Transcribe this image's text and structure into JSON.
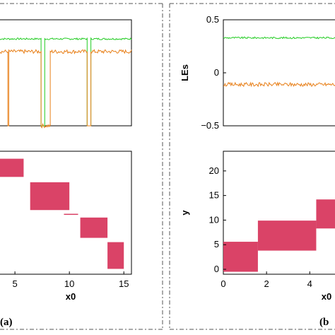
{
  "colors": {
    "green": "#22cc22",
    "orange": "#e8801a",
    "crimson": "#d8395f",
    "dash": "#555555"
  },
  "chart_data": [
    {
      "id": "a-top",
      "type": "line",
      "xlim": [
        8.5,
        15.7
      ],
      "ylim": [
        -0.5,
        0.5
      ],
      "yticks": [],
      "series": [
        {
          "color": "green",
          "values": [
            [
              8.5,
              0.32
            ],
            [
              10.8,
              0.32
            ],
            [
              10.8,
              -0.5
            ],
            [
              11.0,
              -0.5
            ],
            [
              11.0,
              0.32
            ],
            [
              13.3,
              0.32
            ],
            [
              13.3,
              -0.5
            ],
            [
              13.5,
              -0.5
            ],
            [
              13.5,
              0.32
            ],
            [
              15.7,
              0.32
            ]
          ]
        },
        {
          "color": "orange",
          "values": [
            [
              8.5,
              0.2
            ],
            [
              9.0,
              0.2
            ],
            [
              9.0,
              -0.5
            ],
            [
              9.05,
              -0.5
            ],
            [
              9.05,
              0.2
            ],
            [
              10.8,
              0.2
            ],
            [
              10.8,
              -0.5
            ],
            [
              11.3,
              -0.5
            ],
            [
              11.3,
              0.2
            ],
            [
              13.3,
              0.2
            ],
            [
              13.3,
              -0.5
            ],
            [
              13.5,
              -0.5
            ],
            [
              13.5,
              0.2
            ],
            [
              15.7,
              0.2
            ]
          ]
        }
      ],
      "grid": false
    },
    {
      "id": "a-bottom",
      "type": "scatter",
      "xlabel": "x0",
      "xlim": [
        3.5,
        15.7
      ],
      "xticks": [
        5,
        10,
        15
      ],
      "xticklabels": [
        "5",
        "10",
        "15"
      ],
      "bands": [
        {
          "x": [
            3.5,
            5.8
          ],
          "y": [
            17.2,
            20.6
          ]
        },
        {
          "x": [
            6.4,
            10.0
          ],
          "y": [
            11.0,
            16.2
          ]
        },
        {
          "x": [
            9.5,
            10.8
          ],
          "y": [
            10.1,
            10.3
          ]
        },
        {
          "x": [
            11.0,
            13.5
          ],
          "y": [
            5.8,
            9.6
          ]
        },
        {
          "x": [
            13.5,
            15.0
          ],
          "y": [
            0.0,
            5.0
          ]
        }
      ],
      "grid": false
    },
    {
      "id": "b-top",
      "type": "line",
      "ylabel": "LEs",
      "xlim": [
        0,
        5.3
      ],
      "ylim": [
        -0.5,
        0.5
      ],
      "yticks": [
        0.5,
        0,
        -0.5
      ],
      "yticklabels": [
        "0.5",
        "0",
        "−0.5"
      ],
      "series": [
        {
          "color": "green",
          "values": [
            [
              0,
              0.33
            ],
            [
              5.3,
              0.33
            ]
          ]
        },
        {
          "color": "orange",
          "values": [
            [
              0,
              -0.11
            ],
            [
              5.3,
              -0.11
            ]
          ]
        }
      ],
      "grid": false
    },
    {
      "id": "b-bottom",
      "type": "scatter",
      "xlabel": "x0",
      "ylabel": "y",
      "xlim": [
        0,
        5.3
      ],
      "ylim": [
        -1,
        24
      ],
      "xticks": [
        0,
        2,
        4
      ],
      "xticklabels": [
        "0",
        "2",
        "4"
      ],
      "yticks": [
        0,
        5,
        10,
        15,
        20
      ],
      "yticklabels": [
        "0",
        "5",
        "10",
        "15",
        "20"
      ],
      "bands": [
        {
          "x": [
            0,
            1.6
          ],
          "y": [
            -0.5,
            5.6
          ]
        },
        {
          "x": [
            1.6,
            4.3
          ],
          "y": [
            3.8,
            9.9
          ]
        },
        {
          "x": [
            4.3,
            5.3
          ],
          "y": [
            8.3,
            14.2
          ]
        }
      ],
      "grid": false
    }
  ],
  "panel_labels": {
    "a": "(a)",
    "b": "(b"
  }
}
